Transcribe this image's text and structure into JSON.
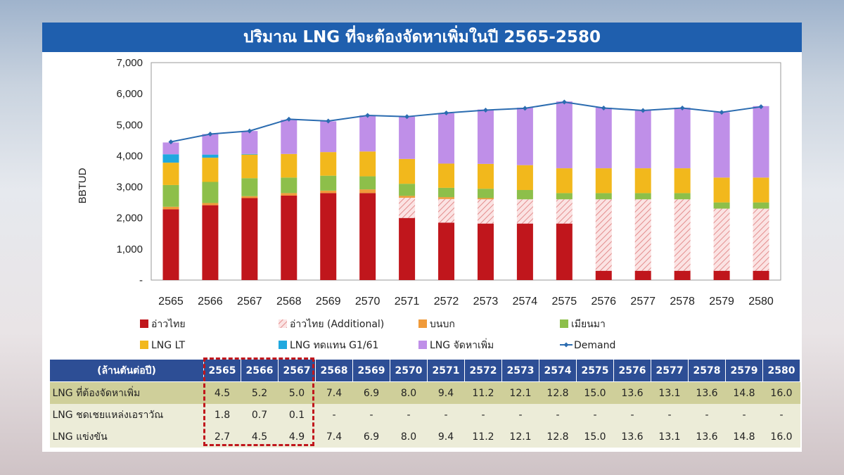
{
  "title": "ปริมาณ LNG ที่จะต้องจัดหาเพิ่มในปี 2565-2580",
  "colors": {
    "gulf": "#c0161c",
    "gulf_additional": "#f2b7b7",
    "onshore": "#f09a3a",
    "myanmar": "#8dbf4a",
    "lng_lt": "#f2b81c",
    "lng_replace": "#1fa8df",
    "lng_procure": "#bf8fe8",
    "demand": "#2b6cb0",
    "header": "#2d4e95"
  },
  "chart_data": {
    "type": "bar",
    "stacked": true,
    "ylabel": "BBTUD",
    "ylim": [
      0,
      7000
    ],
    "yticks": [
      0,
      1000,
      2000,
      3000,
      4000,
      5000,
      6000,
      7000
    ],
    "ytick_labels": [
      "-",
      "1,000",
      "2,000",
      "3,000",
      "4,000",
      "5,000",
      "6,000",
      "7,000"
    ],
    "categories": [
      "2565",
      "2566",
      "2567",
      "2568",
      "2569",
      "2570",
      "2571",
      "2572",
      "2573",
      "2574",
      "2575",
      "2576",
      "2577",
      "2578",
      "2579",
      "2580"
    ],
    "series": [
      {
        "key": "gulf",
        "name": "อ่าวไทย",
        "values": [
          2280,
          2410,
          2640,
          2720,
          2800,
          2800,
          2000,
          1850,
          1820,
          1820,
          1820,
          300,
          300,
          300,
          300,
          300
        ]
      },
      {
        "key": "gulf_additional",
        "name": "อ่าวไทย (Additional)",
        "values": [
          0,
          0,
          0,
          0,
          0,
          0,
          650,
          760,
          780,
          780,
          780,
          2300,
          2300,
          2300,
          2000,
          2000
        ]
      },
      {
        "key": "onshore",
        "name": "บนบก",
        "values": [
          80,
          70,
          60,
          80,
          80,
          120,
          60,
          60,
          40,
          0,
          0,
          0,
          0,
          0,
          0,
          0
        ]
      },
      {
        "key": "myanmar",
        "name": "เมียนมา",
        "values": [
          700,
          680,
          580,
          500,
          480,
          420,
          390,
          300,
          300,
          300,
          200,
          200,
          200,
          200,
          200,
          200
        ]
      },
      {
        "key": "lng_lt",
        "name": "LNG LT",
        "values": [
          720,
          780,
          760,
          760,
          760,
          800,
          800,
          780,
          800,
          800,
          800,
          800,
          800,
          800,
          800,
          800
        ]
      },
      {
        "key": "lng_replace",
        "name": "LNG ทดแทน G1/61",
        "values": [
          270,
          100,
          20,
          0,
          0,
          0,
          0,
          0,
          0,
          0,
          0,
          0,
          0,
          0,
          0,
          0
        ]
      },
      {
        "key": "lng_procure",
        "name": "LNG จัดหาเพิ่ม",
        "values": [
          380,
          660,
          740,
          1100,
          990,
          1160,
          1360,
          1620,
          1750,
          1850,
          2150,
          1950,
          1860,
          1950,
          2100,
          2300
        ]
      }
    ],
    "line": {
      "key": "demand",
      "name": "Demand",
      "values": [
        4450,
        4700,
        4800,
        5180,
        5120,
        5300,
        5260,
        5380,
        5470,
        5530,
        5730,
        5540,
        5460,
        5540,
        5400,
        5580
      ]
    },
    "legend_position": "bottom",
    "grid": false
  },
  "table": {
    "header_label": "(ล้านตันต่อปี)",
    "years": [
      "2565",
      "2566",
      "2567",
      "2568",
      "2569",
      "2570",
      "2571",
      "2572",
      "2573",
      "2574",
      "2575",
      "2576",
      "2577",
      "2578",
      "2579",
      "2580"
    ],
    "rows": [
      {
        "label": "LNG ที่ต้องจัดหาเพิ่ม",
        "values": [
          "4.5",
          "5.2",
          "5.0",
          "7.4",
          "6.9",
          "8.0",
          "9.4",
          "11.2",
          "12.1",
          "12.8",
          "15.0",
          "13.6",
          "13.1",
          "13.6",
          "14.8",
          "16.0"
        ]
      },
      {
        "label": "LNG ชดเชยแหล่งเอราวัณ",
        "values": [
          "1.8",
          "0.7",
          "0.1",
          "-",
          "-",
          "-",
          "-",
          "-",
          "-",
          "-",
          "-",
          "-",
          "-",
          "-",
          "-",
          "-"
        ]
      },
      {
        "label": "LNG แข่งขัน",
        "values": [
          "2.7",
          "4.5",
          "4.9",
          "7.4",
          "6.9",
          "8.0",
          "9.4",
          "11.2",
          "12.1",
          "12.8",
          "15.0",
          "13.6",
          "13.1",
          "13.6",
          "14.8",
          "16.0"
        ]
      }
    ]
  }
}
